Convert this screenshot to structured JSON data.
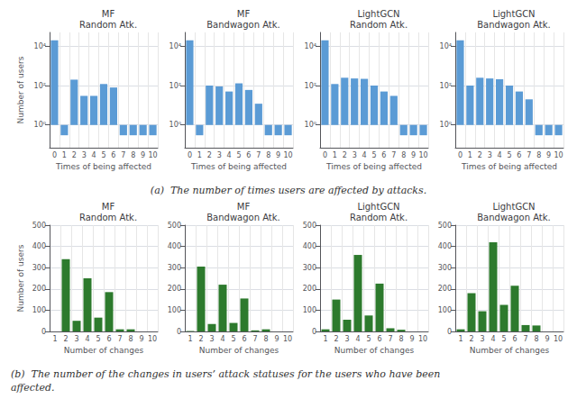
{
  "captions": [
    "(a)  The number of times users are affected by attacks.",
    "(b)  The number of the changes in users’ attack statuses for the users who have been\naffected."
  ],
  "chart_data": [
    {
      "type": "bar",
      "title": "MF\nRandom Atk.",
      "xlabel": "Times of being affected",
      "ylabel": "Number of users",
      "categories": [
        0,
        1,
        2,
        3,
        4,
        5,
        6,
        7,
        8,
        9,
        10
      ],
      "values": [
        20000,
        0.3,
        200,
        30,
        30,
        120,
        80,
        0.3,
        0.3,
        0.3,
        0.3
      ],
      "color": "#5b9bd5",
      "log": "y",
      "ylim": [
        0.07,
        50000
      ],
      "yticks": [
        {
          "value": 1,
          "label": "10⁰"
        },
        {
          "value": 100,
          "label": "10²"
        },
        {
          "value": 10000,
          "label": "10⁴"
        }
      ],
      "grid": true
    },
    {
      "type": "bar",
      "title": "MF\nBandwagon Atk.",
      "xlabel": "Times of being affected",
      "categories": [
        0,
        1,
        2,
        3,
        4,
        5,
        6,
        7,
        8,
        9,
        10
      ],
      "values": [
        20000,
        0.3,
        100,
        90,
        50,
        130,
        60,
        12,
        0.3,
        0.3,
        0.3
      ],
      "color": "#5b9bd5",
      "log": "y",
      "ylim": [
        0.07,
        50000
      ],
      "yticks": [
        {
          "value": 1,
          "label": "10⁰"
        },
        {
          "value": 100,
          "label": "10²"
        },
        {
          "value": 10000,
          "label": "10⁴"
        }
      ],
      "grid": true
    },
    {
      "type": "bar",
      "title": "LightGCN\nRandom Atk.",
      "xlabel": "Times of being affected",
      "categories": [
        0,
        1,
        2,
        3,
        4,
        5,
        6,
        7,
        8,
        9,
        10
      ],
      "values": [
        20000,
        120,
        250,
        230,
        220,
        100,
        50,
        30,
        0.3,
        0.3,
        0.3
      ],
      "color": "#5b9bd5",
      "log": "y",
      "ylim": [
        0.07,
        50000
      ],
      "yticks": [
        {
          "value": 1,
          "label": "10⁰"
        },
        {
          "value": 100,
          "label": "10²"
        },
        {
          "value": 10000,
          "label": "10⁴"
        }
      ],
      "grid": true
    },
    {
      "type": "bar",
      "title": "LightGCN\nBandwagon Atk.",
      "xlabel": "Times of being affected",
      "categories": [
        0,
        1,
        2,
        3,
        4,
        5,
        6,
        7,
        8,
        9,
        10
      ],
      "values": [
        20000,
        100,
        250,
        230,
        210,
        100,
        50,
        20,
        0.3,
        0.3,
        0.3
      ],
      "color": "#5b9bd5",
      "log": "y",
      "ylim": [
        0.07,
        50000
      ],
      "yticks": [
        {
          "value": 1,
          "label": "10⁰"
        },
        {
          "value": 100,
          "label": "10²"
        },
        {
          "value": 10000,
          "label": "10⁴"
        }
      ],
      "grid": true
    },
    {
      "type": "bar",
      "title": "MF\nRandom Atk.",
      "xlabel": "Number of changes",
      "ylabel": "Number of users",
      "categories": [
        1,
        2,
        3,
        4,
        5,
        6,
        7,
        8,
        9,
        10
      ],
      "values": [
        0,
        340,
        50,
        250,
        65,
        185,
        10,
        10,
        0,
        0
      ],
      "color": "#2d7a2d",
      "ylim": [
        0,
        500
      ],
      "yticks": [
        0,
        100,
        200,
        300,
        400,
        500
      ],
      "grid": true
    },
    {
      "type": "bar",
      "title": "MF\nBandwagon Atk.",
      "xlabel": "Number of changes",
      "categories": [
        1,
        2,
        3,
        4,
        5,
        6,
        7,
        8,
        9,
        10
      ],
      "values": [
        2,
        305,
        35,
        220,
        40,
        155,
        5,
        10,
        0,
        0
      ],
      "color": "#2d7a2d",
      "ylim": [
        0,
        500
      ],
      "yticks": [
        0,
        100,
        200,
        300,
        400,
        500
      ],
      "grid": true
    },
    {
      "type": "bar",
      "title": "LightGCN\nRandom Atk.",
      "xlabel": "Number of changes",
      "categories": [
        1,
        2,
        3,
        4,
        5,
        6,
        7,
        8,
        9,
        10
      ],
      "values": [
        10,
        150,
        55,
        360,
        75,
        225,
        15,
        8,
        0,
        0
      ],
      "color": "#2d7a2d",
      "ylim": [
        0,
        500
      ],
      "yticks": [
        0,
        100,
        200,
        300,
        400,
        500
      ],
      "grid": true
    },
    {
      "type": "bar",
      "title": "LightGCN\nBandwagon Atk.",
      "xlabel": "Number of changes",
      "categories": [
        1,
        2,
        3,
        4,
        5,
        6,
        7,
        8,
        9,
        10
      ],
      "values": [
        10,
        180,
        95,
        420,
        125,
        215,
        30,
        28,
        0,
        0
      ],
      "color": "#2d7a2d",
      "ylim": [
        0,
        500
      ],
      "yticks": [
        0,
        100,
        200,
        300,
        400,
        500
      ],
      "grid": true
    }
  ]
}
